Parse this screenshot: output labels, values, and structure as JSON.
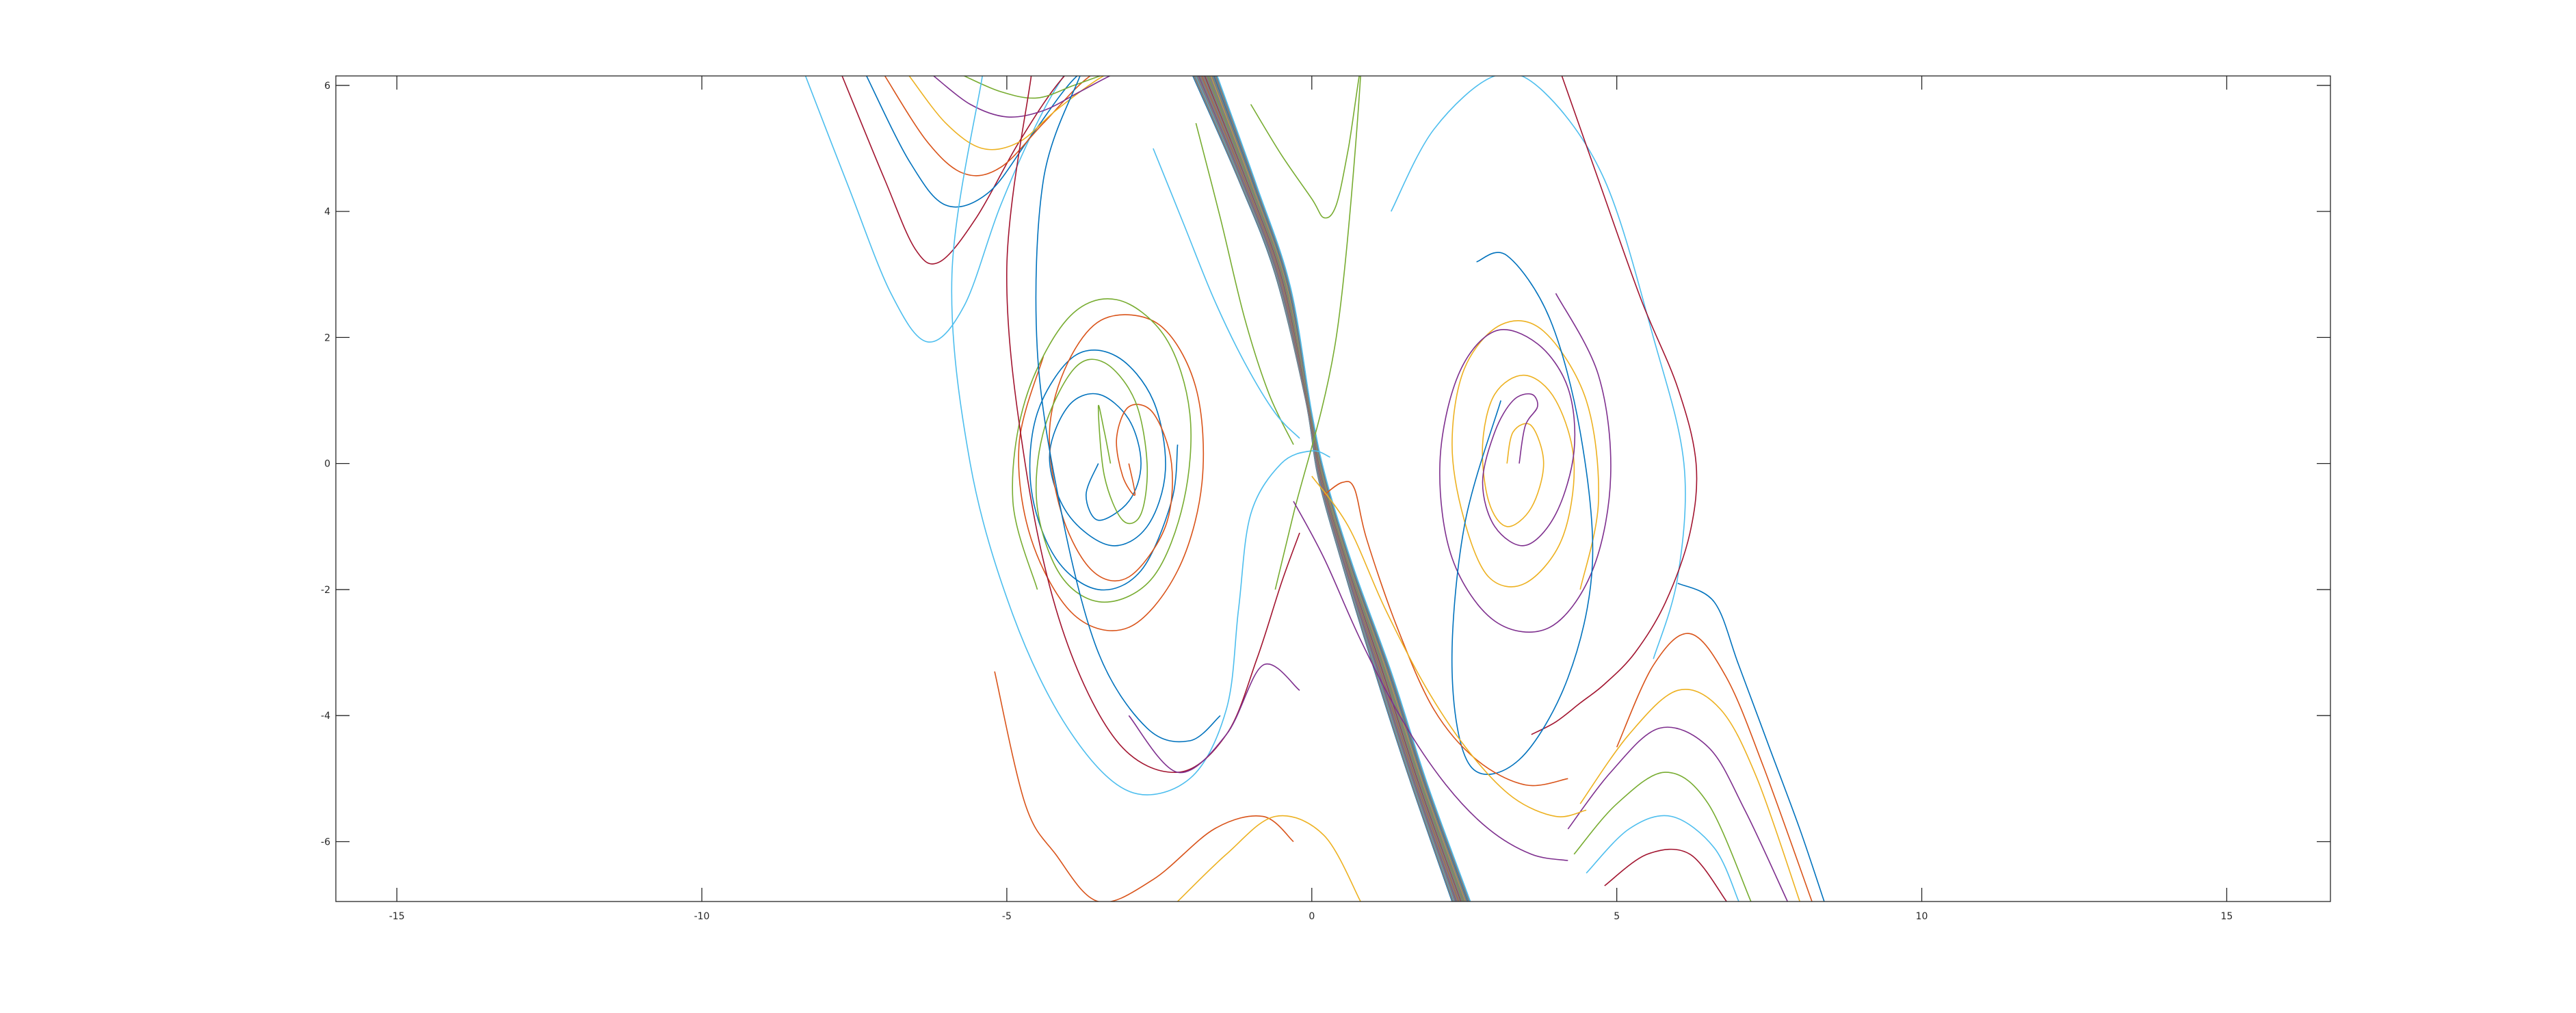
{
  "chart_data": {
    "type": "line",
    "title": "",
    "xlabel": "",
    "ylabel": "",
    "xlim": [
      -16,
      16.7
    ],
    "ylim": [
      -6.95,
      6.15
    ],
    "grid": false,
    "legend": "none",
    "x_ticks": [
      -15,
      -10,
      -5,
      0,
      5,
      10,
      15
    ],
    "y_ticks": [
      -6,
      -4,
      -2,
      0,
      2,
      4,
      6
    ],
    "x_tick_labels": [
      "-15",
      "-10",
      "-5",
      "0",
      "5",
      "10",
      "15"
    ],
    "y_tick_labels": [
      "-6",
      "-4",
      "-2",
      "0",
      "2",
      "4",
      "6"
    ],
    "colors": [
      "#0072BD",
      "#D95319",
      "#EDB120",
      "#7E2F8E",
      "#77AC30",
      "#4DBEEE",
      "#A2142F"
    ],
    "band_color": "#7f7f7f",
    "band": [
      {
        "x": [
          -1.95,
          -1.2,
          -0.6,
          -0.1,
          0.1,
          0.5,
          1.0,
          1.6,
          2.3
        ],
        "y": [
          6.15,
          4.5,
          3.0,
          1.0,
          -0.2,
          -1.6,
          -3.2,
          -5.0,
          -6.95
        ]
      },
      {
        "x": [
          -1.55,
          -0.9,
          -0.35,
          0.0,
          0.25,
          0.7,
          1.3,
          1.9,
          2.6
        ],
        "y": [
          6.15,
          4.4,
          2.8,
          0.8,
          -0.3,
          -1.7,
          -3.3,
          -5.1,
          -6.95
        ]
      }
    ],
    "series": [
      {
        "x": [
          -3.5,
          -3.7,
          -3.5,
          -3.0,
          -2.8,
          -3.0,
          -3.5,
          -4.0,
          -4.3,
          -4.0,
          -3.3,
          -2.7,
          -2.4,
          -2.6,
          -3.2,
          -3.9,
          -4.5,
          -4.6,
          -4.2,
          -3.5,
          -2.8,
          -2.3,
          -2.2
        ],
        "y": [
          0.0,
          -0.5,
          -0.9,
          -0.6,
          0.0,
          0.7,
          1.1,
          0.9,
          0.1,
          -0.8,
          -1.3,
          -1.0,
          -0.1,
          1.0,
          1.7,
          1.7,
          0.8,
          -0.4,
          -1.5,
          -2.0,
          -1.7,
          -0.6,
          0.3
        ]
      },
      {
        "x": [
          -3.0,
          -2.9,
          -3.1,
          -3.2,
          -3.0,
          -2.6,
          -2.3,
          -2.4,
          -3.0,
          -3.6,
          -4.1,
          -4.3,
          -4.0,
          -3.4,
          -2.5,
          -1.9,
          -1.8,
          -2.2,
          -3.0,
          -3.9,
          -4.6,
          -4.8,
          -4.4
        ],
        "y": [
          0.0,
          -0.5,
          -0.2,
          0.4,
          0.9,
          0.8,
          0.0,
          -1.0,
          -1.8,
          -1.7,
          -0.8,
          0.5,
          1.6,
          2.3,
          2.2,
          1.2,
          -0.3,
          -1.7,
          -2.6,
          -2.4,
          -1.2,
          0.3,
          1.7
        ]
      },
      {
        "x": [
          3.2,
          3.3,
          3.6,
          3.8,
          3.6,
          3.2,
          2.9,
          2.8,
          3.0,
          3.5,
          4.0,
          4.3,
          4.1,
          3.5,
          2.9,
          2.5,
          2.3,
          2.5,
          3.1,
          3.8,
          4.5,
          4.7,
          4.4
        ],
        "y": [
          0.0,
          0.5,
          0.6,
          0.0,
          -0.7,
          -1.0,
          -0.6,
          0.3,
          1.1,
          1.4,
          1.0,
          0.0,
          -1.2,
          -1.9,
          -1.8,
          -0.9,
          0.3,
          1.5,
          2.2,
          2.1,
          1.0,
          -0.6,
          -2.0
        ]
      },
      {
        "x": [
          3.4,
          3.5,
          3.7,
          3.6,
          3.3,
          3.0,
          2.8,
          3.0,
          3.5,
          4.0,
          4.3,
          4.2,
          3.7,
          3.0,
          2.4,
          2.1,
          2.3,
          3.0,
          3.9,
          4.6,
          4.9,
          4.7,
          4.0
        ],
        "y": [
          0.0,
          0.6,
          0.9,
          1.1,
          1.0,
          0.5,
          -0.3,
          -1.0,
          -1.3,
          -0.8,
          0.2,
          1.2,
          1.9,
          2.1,
          1.4,
          0.0,
          -1.5,
          -2.5,
          -2.6,
          -1.7,
          -0.2,
          1.4,
          2.7
        ]
      },
      {
        "x": [
          -3.3,
          -3.4,
          -3.5,
          -3.4,
          -3.1,
          -2.8,
          -2.7,
          -2.9,
          -3.4,
          -3.9,
          -4.4,
          -4.5,
          -4.1,
          -3.4,
          -2.6,
          -2.1,
          -2.0,
          -2.4,
          -3.2,
          -4.0,
          -4.7,
          -4.9,
          -4.5
        ],
        "y": [
          0.0,
          0.5,
          0.9,
          -0.2,
          -0.9,
          -0.8,
          0.0,
          1.0,
          1.6,
          1.5,
          0.5,
          -0.7,
          -1.8,
          -2.2,
          -1.8,
          -0.6,
          0.8,
          2.0,
          2.6,
          2.3,
          1.0,
          -0.6,
          -2.0
        ]
      },
      {
        "x": [
          -8.3,
          -7.6,
          -6.9,
          -6.3,
          -5.7,
          -5.1,
          -4.4,
          -3.8,
          -3.3,
          -2.8
        ],
        "y": [
          6.15,
          4.4,
          2.7,
          1.93,
          2.5,
          4.1,
          5.6,
          6.5,
          6.9,
          7.1
        ]
      },
      {
        "x": [
          -7.7,
          -7.0,
          -6.5,
          -6.1,
          -5.5,
          -4.8,
          -4.1,
          -3.4,
          -2.8
        ],
        "y": [
          6.15,
          4.5,
          3.4,
          3.2,
          3.9,
          5.1,
          6.1,
          6.7,
          7.0
        ]
      },
      {
        "x": [
          -7.3,
          -6.6,
          -6.0,
          -5.3,
          -4.6,
          -3.9,
          -3.2,
          -2.6
        ],
        "y": [
          6.15,
          4.8,
          4.1,
          4.3,
          5.2,
          6.1,
          6.6,
          6.9
        ]
      },
      {
        "x": [
          -7.0,
          -6.3,
          -5.7,
          -5.1,
          -4.4,
          -3.7,
          -3.0,
          -2.4
        ],
        "y": [
          6.15,
          5.1,
          4.6,
          4.7,
          5.4,
          6.1,
          6.5,
          6.8
        ]
      },
      {
        "x": [
          -6.6,
          -6.0,
          -5.4,
          -4.8,
          -4.2,
          -3.5,
          -2.9,
          -2.3
        ],
        "y": [
          6.15,
          5.4,
          5.0,
          5.1,
          5.6,
          6.1,
          6.4,
          6.7
        ]
      },
      {
        "x": [
          -6.2,
          -5.6,
          -5.0,
          -4.4,
          -3.8,
          -3.2,
          -2.6
        ],
        "y": [
          6.15,
          5.7,
          5.5,
          5.6,
          5.9,
          6.2,
          6.4
        ]
      },
      {
        "x": [
          -5.7,
          -5.1,
          -4.5,
          -3.9,
          -3.3,
          -2.7
        ],
        "y": [
          6.15,
          5.9,
          5.8,
          6.0,
          6.2,
          6.3
        ]
      },
      {
        "x": [
          -5.4,
          -5.9,
          -5.6,
          -4.9,
          -4.0,
          -3.0,
          -2.0,
          -1.4,
          -1.2,
          -1.0,
          -0.5,
          0.0,
          0.3
        ],
        "y": [
          6.15,
          3.0,
          0.0,
          -2.4,
          -4.2,
          -5.2,
          -5.0,
          -3.9,
          -2.3,
          -0.8,
          0.0,
          0.2,
          0.1
        ]
      },
      {
        "x": [
          -4.6,
          -5.0,
          -4.7,
          -4.1,
          -3.2,
          -2.2,
          -1.4,
          -0.9,
          -0.5,
          -0.2
        ],
        "y": [
          6.15,
          3.1,
          0.0,
          -2.6,
          -4.4,
          -4.9,
          -4.3,
          -3.1,
          -1.9,
          -1.1
        ]
      },
      {
        "x": [
          -3.8,
          -4.4,
          -4.5,
          -4.1,
          -3.5,
          -2.7,
          -2.0,
          -1.5
        ],
        "y": [
          6.15,
          4.5,
          1.8,
          -0.8,
          -3.0,
          -4.2,
          -4.4,
          -4.0
        ]
      },
      {
        "x": [
          -5.2,
          -4.7,
          -4.2,
          -3.5,
          -2.6,
          -1.6,
          -0.8,
          -0.3
        ],
        "y": [
          -3.3,
          -5.4,
          -6.2,
          -6.95,
          -6.6,
          -5.8,
          -5.6,
          -6.0
        ]
      },
      {
        "x": [
          -2.2,
          -1.4,
          -0.6,
          0.2,
          0.8
        ],
        "y": [
          -6.95,
          -6.2,
          -5.6,
          -5.9,
          -6.95
        ]
      },
      {
        "x": [
          -3.0,
          -2.2,
          -1.4,
          -0.8,
          -0.2
        ],
        "y": [
          -4.0,
          -4.9,
          -4.3,
          -3.2,
          -3.6
        ]
      },
      {
        "x": [
          -1.0,
          -0.5,
          0.0,
          0.2,
          0.4,
          0.6,
          0.8,
          0.4,
          -0.3,
          -0.6
        ],
        "y": [
          5.7,
          4.9,
          4.2,
          3.9,
          4.1,
          5.0,
          6.15,
          2.0,
          -0.8,
          -2.0
        ]
      },
      {
        "x": [
          1.3,
          2.0,
          3.0,
          3.8,
          4.8,
          5.6,
          6.1,
          6.0,
          5.6
        ],
        "y": [
          4.0,
          5.3,
          6.15,
          5.9,
          4.5,
          2.0,
          0.0,
          -1.8,
          -3.1
        ]
      },
      {
        "x": [
          4.1,
          4.7,
          5.4,
          6.0,
          6.3,
          6.2,
          5.8,
          5.3,
          4.8,
          4.4,
          4.0,
          3.6
        ],
        "y": [
          6.15,
          4.5,
          2.6,
          1.2,
          0.0,
          -1.1,
          -2.2,
          -3.0,
          -3.5,
          -3.8,
          -4.1,
          -4.3
        ]
      },
      {
        "x": [
          6.0,
          6.6,
          7.0,
          7.5,
          8.0,
          8.4
        ],
        "y": [
          -1.9,
          -2.2,
          -3.2,
          -4.5,
          -5.8,
          -6.95
        ]
      },
      {
        "x": [
          5.0,
          5.6,
          6.2,
          6.8,
          7.4,
          8.2
        ],
        "y": [
          -4.5,
          -3.2,
          -2.7,
          -3.4,
          -4.8,
          -6.95
        ]
      },
      {
        "x": [
          4.4,
          5.2,
          6.0,
          6.7,
          7.3,
          8.0
        ],
        "y": [
          -5.4,
          -4.3,
          -3.6,
          -3.9,
          -5.0,
          -6.95
        ]
      },
      {
        "x": [
          4.2,
          4.9,
          5.7,
          6.5,
          7.1,
          7.8
        ],
        "y": [
          -5.8,
          -4.9,
          -4.2,
          -4.5,
          -5.5,
          -6.95
        ]
      },
      {
        "x": [
          4.3,
          5.0,
          5.8,
          6.5,
          7.2
        ],
        "y": [
          -6.2,
          -5.4,
          -4.9,
          -5.4,
          -6.95
        ]
      },
      {
        "x": [
          4.5,
          5.2,
          5.9,
          6.6,
          7.0
        ],
        "y": [
          -6.5,
          -5.8,
          -5.6,
          -6.1,
          -6.95
        ]
      },
      {
        "x": [
          4.8,
          5.5,
          6.2,
          6.8
        ],
        "y": [
          -6.7,
          -6.2,
          -6.2,
          -6.95
        ]
      },
      {
        "x": [
          2.7,
          3.2,
          3.9,
          4.4,
          4.6,
          4.2,
          3.4,
          2.6,
          2.3,
          2.5,
          3.1
        ],
        "y": [
          3.2,
          3.3,
          2.3,
          0.5,
          -1.6,
          -3.4,
          -4.7,
          -4.8,
          -3.3,
          -1.0,
          1.0
        ]
      },
      {
        "x": [
          0.2,
          0.5,
          0.7,
          0.9,
          1.4,
          2.0,
          2.7,
          3.5,
          4.2
        ],
        "y": [
          -0.5,
          -0.3,
          -0.4,
          -1.2,
          -2.6,
          -3.9,
          -4.7,
          -5.1,
          -5.0
        ]
      },
      {
        "x": [
          0.0,
          0.6,
          1.2,
          1.9,
          2.6,
          3.3,
          4.0,
          4.5
        ],
        "y": [
          -0.2,
          -1.0,
          -2.3,
          -3.6,
          -4.6,
          -5.3,
          -5.6,
          -5.5
        ]
      },
      {
        "x": [
          -0.3,
          0.2,
          0.8,
          1.5,
          2.2,
          2.9,
          3.6,
          4.2
        ],
        "y": [
          -0.6,
          -1.5,
          -2.8,
          -4.1,
          -5.1,
          -5.8,
          -6.2,
          -6.3
        ]
      },
      {
        "x": [
          -1.9,
          -1.5,
          -1.1,
          -0.7,
          -0.3
        ],
        "y": [
          5.4,
          3.9,
          2.3,
          1.1,
          0.3
        ]
      },
      {
        "x": [
          -2.6,
          -2.1,
          -1.6,
          -1.1,
          -0.6,
          -0.2
        ],
        "y": [
          5.0,
          3.8,
          2.6,
          1.6,
          0.8,
          0.4
        ]
      }
    ]
  }
}
